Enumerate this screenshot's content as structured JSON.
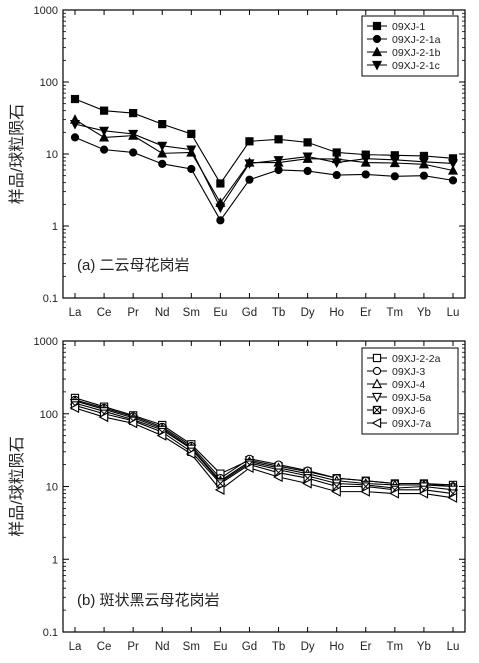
{
  "chart_data": [
    {
      "type": "line",
      "panel_label": "(a) 二云母花岗岩",
      "ylabel": "样品/球粒陨石",
      "yscale": "log",
      "ylim": [
        0.1,
        1000
      ],
      "yticks": [
        "0.1",
        "1",
        "10",
        "100",
        "1000"
      ],
      "categories": [
        "La",
        "Ce",
        "Pr",
        "Nd",
        "Sm",
        "Eu",
        "Gd",
        "Tb",
        "Dy",
        "Ho",
        "Er",
        "Tm",
        "Yb",
        "Lu"
      ],
      "legend_position": "top-right",
      "series": [
        {
          "name": "09XJ-1",
          "marker": "square-filled",
          "values": [
            58,
            40,
            37,
            26,
            19,
            3.9,
            15,
            16,
            14.5,
            10.5,
            9.8,
            9.6,
            9.4,
            8.7
          ]
        },
        {
          "name": "09XJ-2-1a",
          "marker": "circle-filled",
          "values": [
            17,
            11.5,
            10.5,
            7.3,
            6.2,
            1.2,
            4.4,
            6.0,
            5.8,
            5.1,
            5.2,
            4.9,
            5.0,
            4.3
          ]
        },
        {
          "name": "09XJ-2-1b",
          "marker": "triangle-up-filled",
          "values": [
            30,
            17,
            18,
            10.2,
            10.5,
            2.1,
            7.6,
            7.6,
            8.6,
            8.5,
            7.6,
            7.5,
            7.2,
            5.9
          ]
        },
        {
          "name": "09XJ-2-1c",
          "marker": "triangle-down-filled",
          "values": [
            26,
            21,
            19,
            13,
            11.5,
            1.8,
            7.4,
            8.2,
            9.2,
            7.6,
            8.6,
            8.3,
            7.8,
            7.4
          ]
        }
      ]
    },
    {
      "type": "line",
      "panel_label": "(b) 斑状黑云母花岗岩",
      "ylabel": "样品/球粒陨石",
      "yscale": "log",
      "ylim": [
        0.1,
        1000
      ],
      "yticks": [
        "0.1",
        "1",
        "10",
        "100",
        "1000"
      ],
      "categories": [
        "La",
        "Ce",
        "Pr",
        "Nd",
        "Sm",
        "Eu",
        "Gd",
        "Tb",
        "Dy",
        "Ho",
        "Er",
        "Tm",
        "Yb",
        "Lu"
      ],
      "legend_position": "top-right",
      "series": [
        {
          "name": "09XJ-2-2a",
          "marker": "square-open",
          "values": [
            165,
            125,
            95,
            70,
            38,
            15,
            23,
            19,
            16,
            13,
            12,
            11,
            11,
            10.5
          ]
        },
        {
          "name": "09XJ-3",
          "marker": "circle-open",
          "values": [
            155,
            120,
            92,
            66,
            36,
            13,
            24,
            20,
            16.5,
            13,
            12,
            11,
            11,
            10
          ]
        },
        {
          "name": "09XJ-4",
          "marker": "triangle-up-open",
          "values": [
            150,
            115,
            88,
            63,
            34,
            12,
            22,
            18,
            15,
            12,
            11,
            10.5,
            10.5,
            10
          ]
        },
        {
          "name": "09XJ-5a",
          "marker": "triangle-down-open",
          "values": [
            140,
            108,
            83,
            60,
            33,
            11.5,
            21,
            17,
            14,
            11,
            10.5,
            9.5,
            10,
            9
          ]
        },
        {
          "name": "09XJ-6",
          "marker": "x-square-open",
          "values": [
            130,
            100,
            80,
            56,
            30,
            11,
            20,
            15.5,
            13,
            10,
            10,
            9,
            9,
            8
          ]
        },
        {
          "name": "09XJ-7a",
          "marker": "triangle-left-open",
          "values": [
            120,
            90,
            74,
            50,
            28,
            9,
            18,
            13.5,
            11,
            8.5,
            8.5,
            8,
            8,
            7
          ]
        }
      ]
    }
  ]
}
